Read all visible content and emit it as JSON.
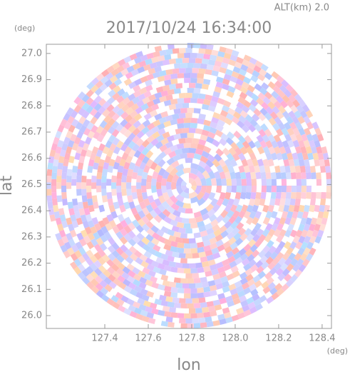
{
  "chart_data": {
    "type": "ppi",
    "title": "2017/10/24 16:34:00",
    "subtitle": "ALT(km) 2.0",
    "y_unit": "(deg)",
    "x_unit": "(deg)",
    "xlabel": "lon",
    "ylabel": "lat",
    "xlim": [
      127.131,
      128.443
    ],
    "ylim": [
      25.951,
      27.035
    ],
    "xticks": [
      127.4,
      127.6,
      127.8,
      {
        "value": 128.0,
        "label": "128.0"
      },
      128.2,
      128.4
    ],
    "yticks": [
      {
        "value": 26.0,
        "label": "26.0"
      },
      26.1,
      26.2,
      26.3,
      26.4,
      26.5,
      26.6,
      26.7,
      26.8,
      26.9,
      {
        "value": 27.0,
        "label": "27.0"
      }
    ]
  }
}
